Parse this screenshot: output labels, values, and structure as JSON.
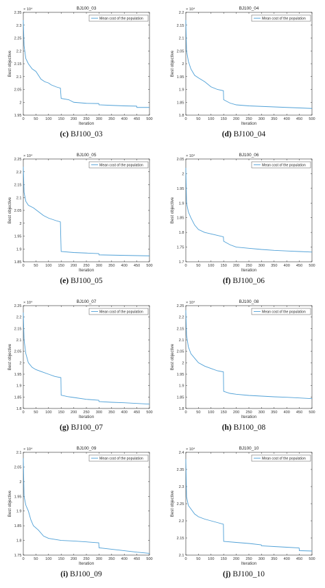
{
  "legend_label": "Mean cost of the population",
  "xlabel": "Iteration",
  "ylabel": "Best objective",
  "exponent": "× 10⁴",
  "line_color": "#4d9fd6",
  "chart_data": [
    {
      "type": "line",
      "title": "BJ100_03",
      "caption_letter": "(c)",
      "caption_text": " BJ100_03",
      "xlim": [
        0,
        500
      ],
      "ylim": [
        1.95,
        2.35
      ],
      "yticks": [
        "1.95",
        "2",
        "2.05",
        "2.1",
        "2.15",
        "2.2",
        "2.25",
        "2.3",
        "2.35"
      ],
      "x": [
        0,
        3,
        10,
        20,
        35,
        50,
        70,
        85,
        100,
        110,
        130,
        147,
        150,
        180,
        200,
        250,
        299,
        300,
        350,
        400,
        449,
        450,
        500
      ],
      "y": [
        2.32,
        2.22,
        2.17,
        2.15,
        2.13,
        2.12,
        2.09,
        2.08,
        2.075,
        2.068,
        2.06,
        2.055,
        2.015,
        2.01,
        2.0,
        1.996,
        1.995,
        1.99,
        1.988,
        1.986,
        1.985,
        1.98,
        1.98
      ]
    },
    {
      "type": "line",
      "title": "BJ100_04",
      "caption_letter": "(d)",
      "caption_text": " BJ100_04",
      "xlim": [
        0,
        500
      ],
      "ylim": [
        1.8,
        2.2
      ],
      "yticks": [
        "1.8",
        "1.85",
        "1.9",
        "1.95",
        "2",
        "2.05",
        "2.1",
        "2.15",
        "2.2"
      ],
      "x": [
        0,
        3,
        10,
        20,
        35,
        50,
        75,
        100,
        125,
        149,
        150,
        175,
        200,
        250,
        300,
        350,
        400,
        450,
        500
      ],
      "y": [
        2.17,
        2.05,
        2.01,
        1.98,
        1.955,
        1.945,
        1.93,
        1.91,
        1.9,
        1.895,
        1.86,
        1.847,
        1.84,
        1.836,
        1.834,
        1.832,
        1.83,
        1.828,
        1.826
      ]
    },
    {
      "type": "line",
      "title": "BJ100_05",
      "caption_letter": "(e)",
      "caption_text": " BJ100_05",
      "xlim": [
        0,
        500
      ],
      "ylim": [
        1.85,
        2.25
      ],
      "yticks": [
        "1.85",
        "1.9",
        "1.95",
        "2",
        "2.05",
        "2.1",
        "2.15",
        "2.2",
        "2.25"
      ],
      "x": [
        0,
        3,
        10,
        20,
        40,
        60,
        80,
        100,
        130,
        147,
        150,
        200,
        250,
        299,
        300,
        350,
        400,
        450,
        500
      ],
      "y": [
        2.22,
        2.12,
        2.085,
        2.07,
        2.06,
        2.045,
        2.03,
        2.02,
        2.01,
        2.005,
        1.89,
        1.886,
        1.884,
        1.882,
        1.877,
        1.876,
        1.875,
        1.874,
        1.873
      ]
    },
    {
      "type": "line",
      "title": "BJ100_06",
      "caption_letter": "(f)",
      "caption_text": " BJ100_06",
      "xlim": [
        0,
        500
      ],
      "ylim": [
        1.7,
        2.05
      ],
      "yticks": [
        "1.7",
        "1.75",
        "1.8",
        "1.85",
        "1.9",
        "1.95",
        "2",
        "2.05"
      ],
      "x": [
        0,
        3,
        10,
        20,
        35,
        50,
        75,
        100,
        125,
        149,
        150,
        175,
        200,
        250,
        300,
        350,
        400,
        450,
        500
      ],
      "y": [
        2.02,
        1.9,
        1.87,
        1.85,
        1.825,
        1.81,
        1.8,
        1.795,
        1.79,
        1.785,
        1.77,
        1.758,
        1.75,
        1.746,
        1.742,
        1.739,
        1.737,
        1.735,
        1.733
      ]
    },
    {
      "type": "line",
      "title": "BJ100_07",
      "caption_letter": "(g)",
      "caption_text": " BJ100_07",
      "xlim": [
        0,
        500
      ],
      "ylim": [
        1.8,
        2.25
      ],
      "yticks": [
        "1.8",
        "1.85",
        "1.9",
        "1.95",
        "2",
        "2.05",
        "2.1",
        "2.15",
        "2.2",
        "2.25"
      ],
      "x": [
        0,
        3,
        10,
        20,
        35,
        50,
        75,
        100,
        125,
        149,
        150,
        175,
        200,
        250,
        299,
        300,
        350,
        400,
        450,
        500
      ],
      "y": [
        2.22,
        2.1,
        2.04,
        2.0,
        1.98,
        1.97,
        1.96,
        1.95,
        1.94,
        1.935,
        1.858,
        1.852,
        1.848,
        1.84,
        1.836,
        1.83,
        1.827,
        1.825,
        1.822,
        1.819
      ]
    },
    {
      "type": "line",
      "title": "BJ100_08",
      "caption_letter": "(h)",
      "caption_text": " BJ100_08",
      "xlim": [
        0,
        500
      ],
      "ylim": [
        1.8,
        2.25
      ],
      "yticks": [
        "1.8",
        "1.85",
        "1.9",
        "1.95",
        "2",
        "2.05",
        "2.1",
        "2.15",
        "2.2",
        "2.25"
      ],
      "x": [
        0,
        3,
        10,
        20,
        35,
        50,
        75,
        100,
        125,
        149,
        150,
        175,
        200,
        250,
        300,
        350,
        400,
        450,
        500
      ],
      "y": [
        2.23,
        2.12,
        2.07,
        2.04,
        2.02,
        2.0,
        1.985,
        1.975,
        1.965,
        1.96,
        1.875,
        1.866,
        1.862,
        1.857,
        1.854,
        1.851,
        1.849,
        1.846,
        1.843
      ]
    },
    {
      "type": "line",
      "title": "BJ100_09",
      "caption_letter": "(i)",
      "caption_text": " BJ100_09",
      "xlim": [
        0,
        500
      ],
      "ylim": [
        1.75,
        2.1
      ],
      "yticks": [
        "1.75",
        "1.8",
        "1.85",
        "1.9",
        "1.95",
        "2",
        "2.05",
        "2.1"
      ],
      "x": [
        0,
        3,
        10,
        20,
        30,
        40,
        60,
        80,
        100,
        150,
        200,
        250,
        299,
        300,
        350,
        400,
        450,
        500
      ],
      "y": [
        2.08,
        1.95,
        1.92,
        1.9,
        1.87,
        1.85,
        1.835,
        1.815,
        1.807,
        1.8,
        1.798,
        1.795,
        1.792,
        1.775,
        1.77,
        1.765,
        1.76,
        1.756
      ]
    },
    {
      "type": "line",
      "title": "BJ100_10",
      "caption_letter": "(j)",
      "caption_text": " BJ100_10",
      "xlim": [
        0,
        500
      ],
      "ylim": [
        2.1,
        2.4
      ],
      "yticks": [
        "2.1",
        "2.15",
        "2.2",
        "2.25",
        "2.3",
        "2.35",
        "2.4"
      ],
      "x": [
        0,
        3,
        10,
        20,
        35,
        50,
        75,
        100,
        125,
        149,
        150,
        200,
        250,
        299,
        300,
        350,
        400,
        449,
        450,
        500
      ],
      "y": [
        2.38,
        2.27,
        2.245,
        2.235,
        2.22,
        2.212,
        2.205,
        2.2,
        2.195,
        2.19,
        2.14,
        2.137,
        2.134,
        2.13,
        2.127,
        2.125,
        2.123,
        2.121,
        2.113,
        2.112
      ]
    }
  ]
}
